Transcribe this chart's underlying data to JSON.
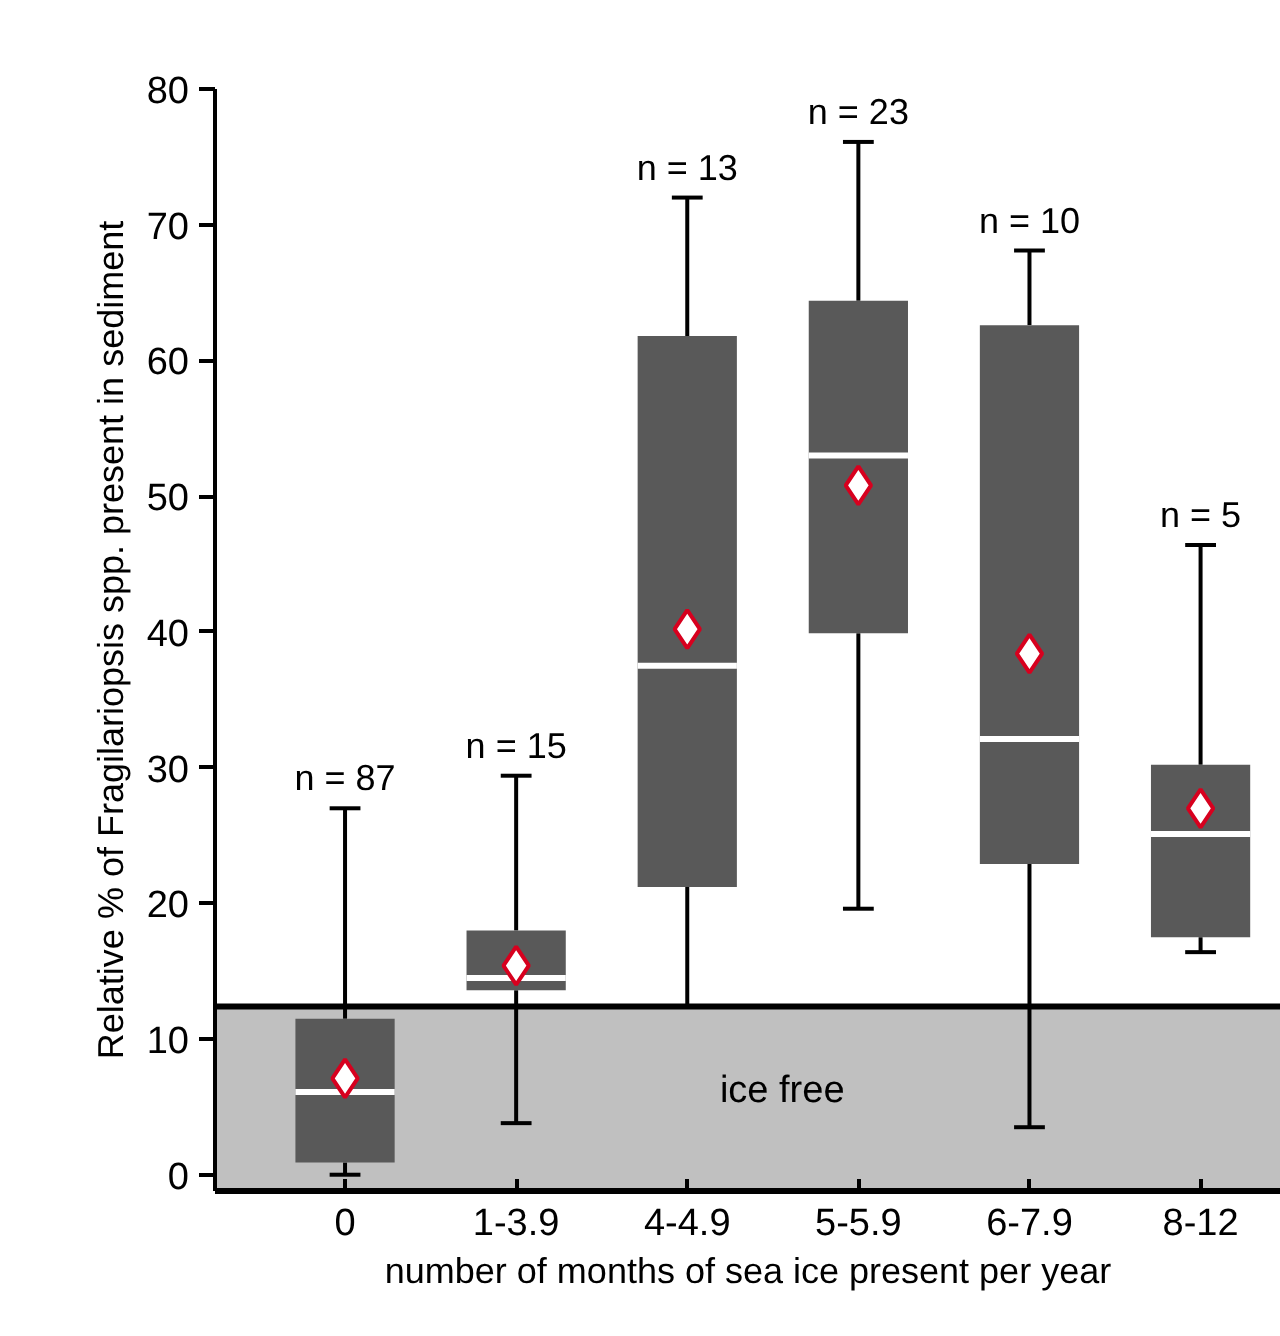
{
  "chart_data": {
    "type": "box",
    "xlabel": "number of months of sea ice present per year",
    "ylabel": "Relative % of Fragilariopsis spp. present in sediment",
    "categories": [
      "0",
      "1-3.9",
      "4-4.9",
      "5-5.9",
      "6-7.9",
      "8-12"
    ],
    "color": "#595959",
    "boxes": [
      {
        "low": 0,
        "q1": 0.9,
        "median": 6.1,
        "q3": 11.5,
        "high": 27.0,
        "mean": 7.1
      },
      {
        "low": 3.8,
        "q1": 13.6,
        "median": 14.5,
        "q3": 18.0,
        "high": 29.4,
        "mean": 15.4
      },
      {
        "low": 12.4,
        "q1": 21.2,
        "median": 37.5,
        "q3": 61.8,
        "high": 72.0,
        "mean": 40.2
      },
      {
        "low": 19.6,
        "q1": 39.9,
        "median": 53.0,
        "q3": 64.4,
        "high": 76.1,
        "mean": 50.8
      },
      {
        "low": 3.5,
        "q1": 22.9,
        "median": 32.1,
        "q3": 62.6,
        "high": 68.1,
        "mean": 38.4
      },
      {
        "low": 16.4,
        "q1": 17.5,
        "median": 25.1,
        "q3": 30.2,
        "high": 46.4,
        "mean": 27.0
      }
    ],
    "ylim": [
      -1.2,
      80
    ],
    "yticks": [
      0,
      10,
      20,
      30,
      40,
      50,
      60,
      70,
      80
    ],
    "bands": [
      {
        "axis": "y",
        "from": -1.2,
        "to": 12.4,
        "label": "ice free",
        "color": "#c0c0c0"
      }
    ],
    "ref_lines": [
      {
        "axis": "y",
        "value": 12.4,
        "color": "#000000"
      }
    ],
    "annotations": [
      "n = 87",
      "n = 15",
      "n = 13",
      "n = 23",
      "n = 10",
      "n = 5"
    ],
    "marker": "diamond",
    "grid": false
  }
}
